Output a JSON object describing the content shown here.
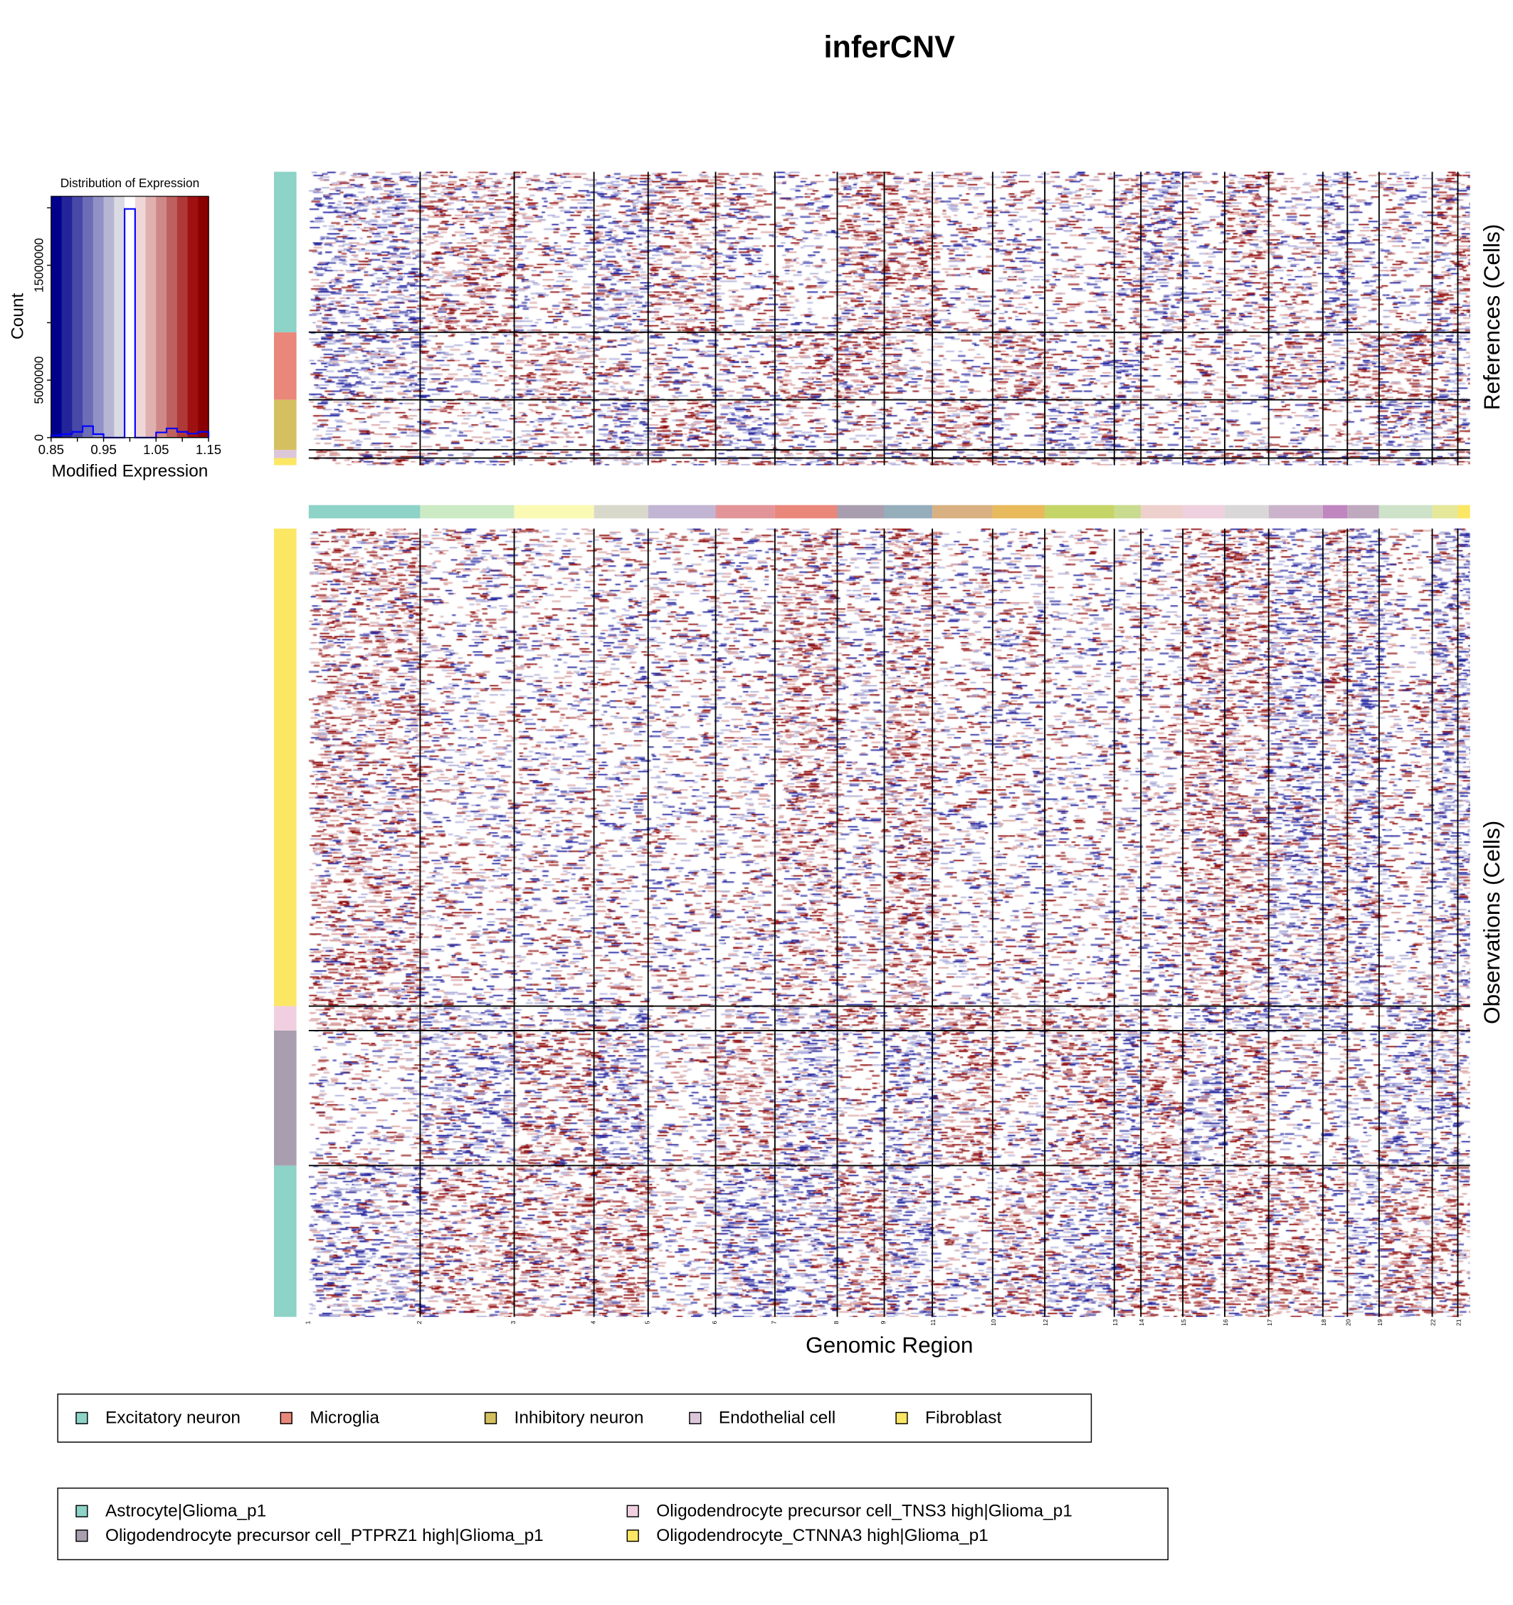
{
  "title": "inferCNV",
  "histogram": {
    "title": "Distribution of Expression",
    "xlabel": "Modified Expression",
    "ylabel": "Count",
    "xticks": [
      "0.85",
      "0.95",
      "1.05",
      "1.15"
    ],
    "yticks": [
      "0",
      "5000000",
      "15000000"
    ]
  },
  "chart_data": [
    {
      "type": "bar",
      "title": "Distribution of Expression",
      "xlabel": "Modified Expression",
      "ylabel": "Count",
      "xlim": [
        0.85,
        1.15
      ],
      "ylim": [
        0,
        21000000
      ],
      "bin_edges": [
        0.85,
        0.87,
        0.89,
        0.91,
        0.93,
        0.95,
        0.97,
        0.99,
        1.01,
        1.03,
        1.05,
        1.07,
        1.09,
        1.11,
        1.13,
        1.15
      ],
      "values": [
        200000,
        300000,
        500000,
        1000000,
        300000,
        0,
        0,
        19900000,
        0,
        0,
        450000,
        800000,
        500000,
        350000,
        500000
      ],
      "colorscale": [
        "#00008b",
        "#24249a",
        "#4848a8",
        "#6d6db7",
        "#9191c5",
        "#b6b6d4",
        "#dadae2",
        "#ffffff",
        "#efd7d7",
        "#dfb0b0",
        "#cf8888",
        "#bf6060",
        "#af3939",
        "#9f1111",
        "#8b0000"
      ]
    },
    {
      "type": "heatmap",
      "xlabel": "Genomic Region",
      "ylabel_top": "References (Cells)",
      "ylabel_bottom": "Observations (Cells)",
      "chromosomes": [
        "1",
        "2",
        "3",
        "4",
        "5",
        "6",
        "7",
        "8",
        "9",
        "11",
        "10",
        "12",
        "13",
        "14",
        "15",
        "16",
        "17",
        "18",
        "20",
        "19",
        "22",
        "21"
      ],
      "chromosome_colors": [
        "#8dd3c7",
        "#ccebc5",
        "#fafab4",
        "#d9d9cb",
        "#c2b5d3",
        "#e29499",
        "#e9877a",
        "#a89eaf",
        "#96adbb",
        "#d9b081",
        "#e8ba5c",
        "#c4d467",
        "#c9db8e",
        "#eed0cd",
        "#eed0de",
        "#dad7d9",
        "#cbb4cb",
        "#bf86bf",
        "#bfa9bf",
        "#cde2c9",
        "#e5e899",
        "#fce765"
      ],
      "reference_groups": [
        "Excitatory neuron",
        "Microglia",
        "Inhibitory neuron",
        "Endothelial cell",
        "Fibroblast"
      ],
      "observation_groups": [
        "Oligodendrocyte_CTNNA3 high|Glioma_p1",
        "Oligodendrocyte precursor cell_TNS3 high|Glioma_p1",
        "Oligodendrocyte precursor cell_PTPRZ1 high|Glioma_p1",
        "Astrocyte|Glioma_p1"
      ]
    }
  ],
  "axis": {
    "genomic_region": "Genomic Region",
    "references": "References (Cells)",
    "observations": "Observations (Cells)"
  },
  "legend_refs": [
    {
      "label": "Excitatory neuron",
      "color": "#8dd3c7"
    },
    {
      "label": "Microglia",
      "color": "#e9877a"
    },
    {
      "label": "Inhibitory neuron",
      "color": "#d4c060"
    },
    {
      "label": "Endothelial cell",
      "color": "#dcc7d8"
    },
    {
      "label": "Fibroblast",
      "color": "#fce765"
    }
  ],
  "legend_obs": [
    {
      "label": "Astrocyte|Glioma_p1",
      "color": "#8dd3c7"
    },
    {
      "label": "Oligodendrocyte precursor cell_TNS3 high|Glioma_p1",
      "color": "#f0d0e0"
    },
    {
      "label": "Oligodendrocyte precursor cell_PTPRZ1 high|Glioma_p1",
      "color": "#a89eaf"
    },
    {
      "label": "Oligodendrocyte_CTNNA3 high|Glioma_p1",
      "color": "#fce765"
    }
  ]
}
